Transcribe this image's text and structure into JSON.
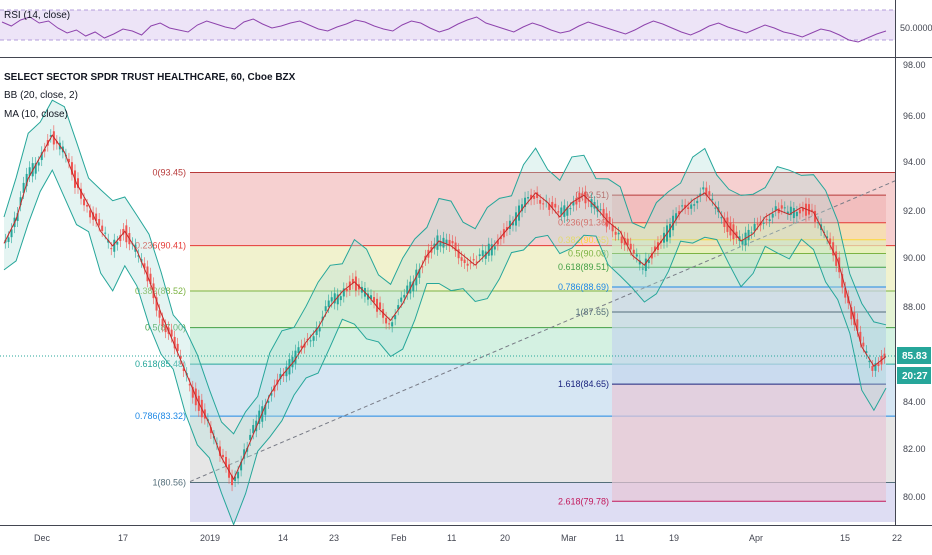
{
  "rsi_panel": {
    "label": "RSI (14, close)",
    "axis_label": "50.0000",
    "level": 50,
    "range": [
      0,
      100
    ],
    "values": [
      56,
      52,
      58,
      61,
      55,
      57,
      50,
      45,
      48,
      42,
      46,
      40,
      44,
      49,
      47,
      43,
      52,
      55,
      50,
      48,
      46,
      53,
      57,
      54,
      51,
      49,
      56,
      59,
      54,
      50,
      52,
      55,
      57,
      53,
      49,
      47,
      51,
      54,
      58,
      56,
      52,
      49,
      47,
      53,
      57,
      55,
      50,
      46,
      49,
      54,
      58,
      61,
      55,
      52,
      49,
      46,
      51,
      55,
      52,
      48,
      45,
      47,
      52,
      56,
      53,
      50,
      47,
      44,
      48,
      53,
      57,
      54,
      50,
      46,
      43,
      47,
      52,
      55,
      51,
      48,
      45,
      49,
      53,
      50,
      46,
      44,
      41,
      45,
      49,
      47,
      43,
      38,
      36,
      40,
      44,
      47
    ]
  },
  "main_panel": {
    "title": "SELECT SECTOR SPDR TRUST HEALTHCARE, 60, Cboe BZX",
    "indicators": [
      "BB (20, close, 2)",
      "MA (10, close)"
    ]
  },
  "price_axis": {
    "ticks": [
      "98.00",
      "96.00",
      "94.00",
      "92.00",
      "90.00",
      "88.00",
      "86.00",
      "84.00",
      "82.00",
      "80.00"
    ],
    "current_price": "85.83",
    "countdown": "20:27",
    "price_color": "#26a69a"
  },
  "time_axis": {
    "labels": [
      "Dec",
      "17",
      "2019",
      "14",
      "23",
      "Feb",
      "11",
      "20",
      "Mar",
      "11",
      "19",
      "Apr",
      "15",
      "22"
    ]
  },
  "fib_retracement": {
    "levels": [
      {
        "ratio": 0,
        "label": "0(93.45)",
        "price": 93.45,
        "color": "#b73a3a"
      },
      {
        "ratio": 0.236,
        "label": "0.236(90.41)",
        "price": 90.41,
        "color": "#e53935"
      },
      {
        "ratio": 0.382,
        "label": "0.382(88.52)",
        "price": 88.52,
        "color": "#7cb342"
      },
      {
        "ratio": 0.5,
        "label": "0.5(87.00)",
        "price": 87.0,
        "color": "#43a047"
      },
      {
        "ratio": 0.618,
        "label": "0.618(85.48)",
        "price": 85.48,
        "color": "#26a69a"
      },
      {
        "ratio": 0.786,
        "label": "0.786(83.32)",
        "price": 83.32,
        "color": "#1e88e5"
      },
      {
        "ratio": 1,
        "label": "1(80.56)",
        "price": 80.56,
        "color": "#546e7a"
      }
    ]
  },
  "fib_extension": {
    "levels": [
      {
        "ratio": 0,
        "label": "0(92.51)",
        "price": 92.51,
        "color": "#b73a3a"
      },
      {
        "ratio": 0.236,
        "label": "0.236(91.36)",
        "price": 91.36,
        "color": "#e53935"
      },
      {
        "ratio": 0.382,
        "label": "0.382(90.65)",
        "price": 90.65,
        "color": "#fdd835"
      },
      {
        "ratio": 0.5,
        "label": "0.5(90.08)",
        "price": 90.08,
        "color": "#7cb342"
      },
      {
        "ratio": 0.618,
        "label": "0.618(89.51)",
        "price": 89.51,
        "color": "#43a047"
      },
      {
        "ratio": 0.786,
        "label": "0.786(88.69)",
        "price": 88.69,
        "color": "#1e88e5"
      },
      {
        "ratio": 1,
        "label": "1(87.65)",
        "price": 87.65,
        "color": "#546e7a"
      },
      {
        "ratio": 1.618,
        "label": "1.618(84.65)",
        "price": 84.65,
        "color": "#1a237e"
      },
      {
        "ratio": 2.618,
        "label": "2.618(79.78)",
        "price": 79.78,
        "color": "#c2185b"
      }
    ]
  },
  "price_series": [
    90.5,
    91.5,
    93.2,
    94.1,
    95.0,
    94.3,
    93.0,
    92.1,
    91.0,
    90.4,
    91.0,
    90.2,
    89.0,
    87.6,
    86.4,
    85.2,
    84.0,
    83.0,
    81.6,
    80.7,
    81.8,
    83.0,
    84.2,
    85.0,
    85.6,
    86.4,
    87.0,
    87.9,
    88.5,
    88.9,
    88.4,
    87.8,
    87.3,
    88.0,
    89.0,
    90.0,
    90.6,
    90.4,
    90.0,
    89.6,
    90.1,
    90.7,
    91.3,
    92.0,
    92.6,
    92.2,
    91.6,
    92.2,
    92.5,
    92.0,
    91.4,
    91.0,
    90.0,
    89.6,
    90.3,
    91.0,
    91.8,
    92.3,
    92.6,
    92.0,
    91.2,
    90.6,
    90.9,
    91.6,
    91.9,
    91.7,
    92.0,
    91.8,
    90.8,
    89.8,
    88.0,
    86.2,
    85.4,
    85.8
  ],
  "colors": {
    "rsi_line": "#8e44ad",
    "ma_line": "#c62828",
    "bb_band": "#26a69a",
    "trend_line": "#787b86"
  }
}
